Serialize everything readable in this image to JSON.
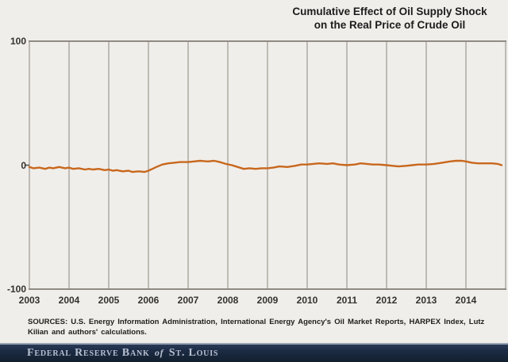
{
  "header": {
    "title_line1": "Cumulative Effect of Oil Supply Shock",
    "title_line2": "on the Real Price of Crude Oil"
  },
  "chart_data": {
    "type": "line",
    "title": "Cumulative Effect of Oil Supply Shock on the Real Price of Crude Oil",
    "xlabel": "",
    "ylabel": "",
    "xlim": [
      2003,
      2015
    ],
    "ylim": [
      -100,
      100
    ],
    "y_ticks": [
      100,
      0,
      -100
    ],
    "x_ticks": [
      2003,
      2004,
      2005,
      2006,
      2007,
      2008,
      2009,
      2010,
      2011,
      2012,
      2013,
      2014
    ],
    "grid": "vertical-only",
    "legend": "none",
    "series": [
      {
        "name": "Cumulative effect of oil supply shock on real price of crude oil",
        "x": [
          2003.0,
          2003.1,
          2003.25,
          2003.4,
          2003.5,
          2003.6,
          2003.75,
          2003.9,
          2004.0,
          2004.1,
          2004.25,
          2004.4,
          2004.5,
          2004.6,
          2004.75,
          2004.9,
          2005.0,
          2005.1,
          2005.2,
          2005.35,
          2005.5,
          2005.6,
          2005.75,
          2005.9,
          2006.0,
          2006.1,
          2006.2,
          2006.35,
          2006.5,
          2006.65,
          2006.8,
          2007.0,
          2007.15,
          2007.3,
          2007.5,
          2007.65,
          2007.8,
          2007.95,
          2008.1,
          2008.25,
          2008.4,
          2008.55,
          2008.7,
          2008.85,
          2009.0,
          2009.15,
          2009.3,
          2009.5,
          2009.7,
          2009.85,
          2010.0,
          2010.15,
          2010.3,
          2010.5,
          2010.65,
          2010.8,
          2011.0,
          2011.2,
          2011.35,
          2011.5,
          2011.65,
          2011.8,
          2012.0,
          2012.15,
          2012.3,
          2012.5,
          2012.65,
          2012.8,
          2013.0,
          2013.2,
          2013.4,
          2013.6,
          2013.75,
          2013.9,
          2014.0,
          2014.15,
          2014.3,
          2014.5,
          2014.65,
          2014.8,
          2014.9
        ],
        "y": [
          -1.5,
          -2.5,
          -2,
          -3,
          -2,
          -2.5,
          -1.5,
          -2.5,
          -2,
          -3,
          -2.5,
          -3.5,
          -3,
          -3.5,
          -3,
          -4,
          -3.5,
          -4.5,
          -4,
          -5,
          -4.5,
          -5.5,
          -5,
          -5.5,
          -4.5,
          -3,
          -1.5,
          0.5,
          1.5,
          2,
          2.5,
          2.5,
          3,
          3.5,
          3,
          3.5,
          2.5,
          1,
          0,
          -1.5,
          -3,
          -2.5,
          -3,
          -2.5,
          -2.5,
          -2,
          -1,
          -1.5,
          -0.5,
          0.5,
          0.5,
          1,
          1.5,
          1,
          1.5,
          0.5,
          0,
          0.5,
          1.5,
          1,
          0.5,
          0.5,
          0,
          -0.5,
          -1,
          -0.5,
          0,
          0.5,
          0.5,
          1,
          2,
          3,
          3.5,
          3.5,
          3,
          2,
          1.5,
          1.5,
          1.5,
          1,
          0
        ]
      }
    ]
  },
  "footer": {
    "sources": "SOURCES: U.S. Energy Information Administration, International Energy Agency's Oil Market Reports, HARPEX Index, Lutz Kilian and authors' calculations."
  },
  "banner": {
    "org_part1": "Federal Reserve Bank",
    "of_word": "of",
    "org_part2": "St. Louis"
  },
  "colors": {
    "background": "#f0eeea",
    "line": "#c8671d",
    "grid": "#a9a49d",
    "plot_border": "#8f8a83",
    "banner_bg": "#1c2b44",
    "banner_text": "#b7c0d0"
  }
}
